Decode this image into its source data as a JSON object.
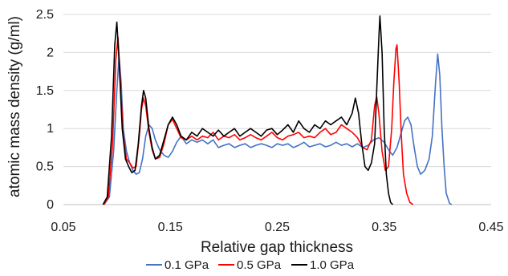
{
  "chart_data": {
    "type": "line",
    "title": "",
    "xlabel": "Relative gap thickness",
    "ylabel": "atomic mass density (g/ml)",
    "xlim": [
      0.05,
      0.45
    ],
    "ylim": [
      0,
      2.5
    ],
    "x_ticks": [
      0.05,
      0.15,
      0.25,
      0.35,
      0.45
    ],
    "x_tick_labels": [
      "0.05",
      "0.15",
      "0.25",
      "0.35",
      "0.45"
    ],
    "y_ticks": [
      0,
      0.5,
      1,
      1.5,
      2,
      2.5
    ],
    "y_tick_labels": [
      "0",
      "0.5",
      "1",
      "1.5",
      "2",
      "2.5"
    ],
    "grid": {
      "horizontal": true,
      "vertical": false
    },
    "legend_position": "bottom",
    "series": [
      {
        "name": "0.1 GPa",
        "color": "#4472C4",
        "points": [
          [
            0.088,
            0
          ],
          [
            0.093,
            0.1
          ],
          [
            0.097,
            0.7
          ],
          [
            0.1,
            1.5
          ],
          [
            0.102,
            1.95
          ],
          [
            0.104,
            1.6
          ],
          [
            0.106,
            1.0
          ],
          [
            0.109,
            0.7
          ],
          [
            0.112,
            0.55
          ],
          [
            0.115,
            0.45
          ],
          [
            0.118,
            0.4
          ],
          [
            0.121,
            0.42
          ],
          [
            0.124,
            0.6
          ],
          [
            0.127,
            0.9
          ],
          [
            0.13,
            1.05
          ],
          [
            0.133,
            1.0
          ],
          [
            0.136,
            0.85
          ],
          [
            0.14,
            0.72
          ],
          [
            0.144,
            0.65
          ],
          [
            0.148,
            0.62
          ],
          [
            0.152,
            0.7
          ],
          [
            0.156,
            0.82
          ],
          [
            0.16,
            0.9
          ],
          [
            0.165,
            0.8
          ],
          [
            0.17,
            0.85
          ],
          [
            0.175,
            0.82
          ],
          [
            0.18,
            0.85
          ],
          [
            0.185,
            0.8
          ],
          [
            0.19,
            0.85
          ],
          [
            0.195,
            0.75
          ],
          [
            0.2,
            0.78
          ],
          [
            0.205,
            0.8
          ],
          [
            0.21,
            0.75
          ],
          [
            0.215,
            0.78
          ],
          [
            0.22,
            0.8
          ],
          [
            0.225,
            0.75
          ],
          [
            0.23,
            0.78
          ],
          [
            0.235,
            0.8
          ],
          [
            0.24,
            0.78
          ],
          [
            0.245,
            0.75
          ],
          [
            0.25,
            0.8
          ],
          [
            0.255,
            0.78
          ],
          [
            0.26,
            0.8
          ],
          [
            0.265,
            0.75
          ],
          [
            0.27,
            0.78
          ],
          [
            0.275,
            0.82
          ],
          [
            0.28,
            0.76
          ],
          [
            0.285,
            0.78
          ],
          [
            0.29,
            0.8
          ],
          [
            0.295,
            0.76
          ],
          [
            0.3,
            0.78
          ],
          [
            0.305,
            0.82
          ],
          [
            0.31,
            0.78
          ],
          [
            0.315,
            0.8
          ],
          [
            0.32,
            0.76
          ],
          [
            0.325,
            0.8
          ],
          [
            0.33,
            0.75
          ],
          [
            0.335,
            0.78
          ],
          [
            0.34,
            0.85
          ],
          [
            0.345,
            0.88
          ],
          [
            0.35,
            0.82
          ],
          [
            0.355,
            0.7
          ],
          [
            0.358,
            0.65
          ],
          [
            0.362,
            0.75
          ],
          [
            0.366,
            0.95
          ],
          [
            0.369,
            1.1
          ],
          [
            0.372,
            1.15
          ],
          [
            0.375,
            1.05
          ],
          [
            0.378,
            0.75
          ],
          [
            0.381,
            0.5
          ],
          [
            0.384,
            0.4
          ],
          [
            0.388,
            0.45
          ],
          [
            0.392,
            0.6
          ],
          [
            0.395,
            0.9
          ],
          [
            0.398,
            1.6
          ],
          [
            0.4,
            1.98
          ],
          [
            0.402,
            1.7
          ],
          [
            0.404,
            1.0
          ],
          [
            0.406,
            0.5
          ],
          [
            0.408,
            0.15
          ],
          [
            0.411,
            0.02
          ],
          [
            0.413,
            0
          ]
        ]
      },
      {
        "name": "0.5 GPa",
        "color": "#FF0000",
        "points": [
          [
            0.088,
            0
          ],
          [
            0.092,
            0.1
          ],
          [
            0.096,
            0.8
          ],
          [
            0.099,
            1.9
          ],
          [
            0.101,
            2.2
          ],
          [
            0.103,
            1.7
          ],
          [
            0.106,
            0.9
          ],
          [
            0.109,
            0.6
          ],
          [
            0.112,
            0.55
          ],
          [
            0.115,
            0.48
          ],
          [
            0.118,
            0.5
          ],
          [
            0.121,
            0.9
          ],
          [
            0.123,
            1.25
          ],
          [
            0.125,
            1.4
          ],
          [
            0.127,
            1.3
          ],
          [
            0.13,
            0.95
          ],
          [
            0.133,
            0.72
          ],
          [
            0.136,
            0.6
          ],
          [
            0.14,
            0.62
          ],
          [
            0.144,
            0.8
          ],
          [
            0.148,
            1.05
          ],
          [
            0.152,
            1.12
          ],
          [
            0.156,
            1.0
          ],
          [
            0.16,
            0.88
          ],
          [
            0.165,
            0.85
          ],
          [
            0.17,
            0.9
          ],
          [
            0.175,
            0.85
          ],
          [
            0.18,
            0.9
          ],
          [
            0.185,
            0.88
          ],
          [
            0.19,
            0.95
          ],
          [
            0.195,
            0.85
          ],
          [
            0.2,
            0.9
          ],
          [
            0.205,
            0.88
          ],
          [
            0.21,
            0.92
          ],
          [
            0.215,
            0.85
          ],
          [
            0.22,
            0.88
          ],
          [
            0.225,
            0.92
          ],
          [
            0.23,
            0.88
          ],
          [
            0.235,
            0.85
          ],
          [
            0.24,
            0.9
          ],
          [
            0.245,
            0.95
          ],
          [
            0.25,
            0.88
          ],
          [
            0.255,
            0.85
          ],
          [
            0.26,
            0.9
          ],
          [
            0.265,
            0.92
          ],
          [
            0.27,
            0.95
          ],
          [
            0.275,
            0.88
          ],
          [
            0.28,
            0.9
          ],
          [
            0.285,
            0.88
          ],
          [
            0.29,
            0.95
          ],
          [
            0.295,
            1.0
          ],
          [
            0.3,
            0.92
          ],
          [
            0.305,
            0.95
          ],
          [
            0.31,
            1.05
          ],
          [
            0.315,
            1.0
          ],
          [
            0.32,
            0.95
          ],
          [
            0.325,
            0.88
          ],
          [
            0.33,
            0.75
          ],
          [
            0.334,
            0.72
          ],
          [
            0.338,
            0.85
          ],
          [
            0.341,
            1.3
          ],
          [
            0.343,
            1.42
          ],
          [
            0.345,
            1.2
          ],
          [
            0.348,
            0.7
          ],
          [
            0.351,
            0.45
          ],
          [
            0.354,
            0.5
          ],
          [
            0.357,
            1.0
          ],
          [
            0.359,
            1.6
          ],
          [
            0.361,
            2.05
          ],
          [
            0.362,
            2.1
          ],
          [
            0.364,
            1.6
          ],
          [
            0.366,
            0.9
          ],
          [
            0.368,
            0.4
          ],
          [
            0.371,
            0.15
          ],
          [
            0.374,
            0.03
          ],
          [
            0.377,
            0
          ]
        ]
      },
      {
        "name": "1.0 GPa",
        "color": "#000000",
        "points": [
          [
            0.087,
            0
          ],
          [
            0.091,
            0.1
          ],
          [
            0.095,
            0.9
          ],
          [
            0.098,
            2.1
          ],
          [
            0.1,
            2.4
          ],
          [
            0.102,
            1.9
          ],
          [
            0.105,
            1.0
          ],
          [
            0.108,
            0.6
          ],
          [
            0.111,
            0.5
          ],
          [
            0.114,
            0.42
          ],
          [
            0.117,
            0.45
          ],
          [
            0.12,
            0.8
          ],
          [
            0.123,
            1.3
          ],
          [
            0.125,
            1.5
          ],
          [
            0.127,
            1.4
          ],
          [
            0.13,
            1.0
          ],
          [
            0.133,
            0.75
          ],
          [
            0.136,
            0.6
          ],
          [
            0.14,
            0.65
          ],
          [
            0.144,
            0.85
          ],
          [
            0.148,
            1.05
          ],
          [
            0.152,
            1.15
          ],
          [
            0.156,
            1.05
          ],
          [
            0.16,
            0.9
          ],
          [
            0.165,
            0.85
          ],
          [
            0.17,
            0.95
          ],
          [
            0.175,
            0.9
          ],
          [
            0.18,
            1.0
          ],
          [
            0.185,
            0.95
          ],
          [
            0.19,
            0.9
          ],
          [
            0.195,
            0.98
          ],
          [
            0.2,
            0.9
          ],
          [
            0.205,
            0.95
          ],
          [
            0.21,
            1.0
          ],
          [
            0.215,
            0.9
          ],
          [
            0.22,
            0.95
          ],
          [
            0.225,
            1.0
          ],
          [
            0.23,
            0.95
          ],
          [
            0.235,
            0.9
          ],
          [
            0.24,
            0.98
          ],
          [
            0.245,
            1.0
          ],
          [
            0.25,
            0.92
          ],
          [
            0.255,
            0.98
          ],
          [
            0.26,
            1.05
          ],
          [
            0.265,
            0.95
          ],
          [
            0.27,
            1.1
          ],
          [
            0.275,
            1.0
          ],
          [
            0.28,
            0.95
          ],
          [
            0.285,
            1.05
          ],
          [
            0.29,
            1.0
          ],
          [
            0.295,
            1.1
          ],
          [
            0.3,
            1.05
          ],
          [
            0.305,
            1.1
          ],
          [
            0.31,
            1.15
          ],
          [
            0.315,
            1.05
          ],
          [
            0.32,
            1.2
          ],
          [
            0.323,
            1.4
          ],
          [
            0.326,
            1.2
          ],
          [
            0.329,
            0.8
          ],
          [
            0.332,
            0.5
          ],
          [
            0.335,
            0.45
          ],
          [
            0.338,
            0.55
          ],
          [
            0.341,
            0.8
          ],
          [
            0.343,
            1.5
          ],
          [
            0.345,
            2.2
          ],
          [
            0.346,
            2.48
          ],
          [
            0.348,
            2.0
          ],
          [
            0.35,
            1.0
          ],
          [
            0.352,
            0.4
          ],
          [
            0.354,
            0.15
          ],
          [
            0.356,
            0.03
          ],
          [
            0.358,
            0
          ]
        ]
      }
    ]
  }
}
